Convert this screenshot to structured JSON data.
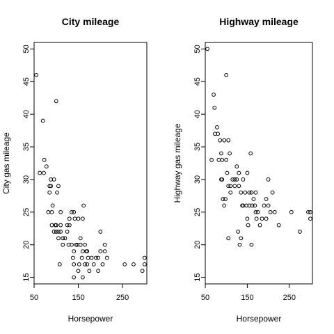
{
  "chart_data": [
    {
      "type": "scatter",
      "title": "City mileage",
      "xlabel": "Horsepower",
      "ylabel": "City gas mileage",
      "xlim": [
        50,
        305
      ],
      "ylim": [
        14,
        51
      ],
      "xticks": [
        50,
        150,
        250
      ],
      "yticks": [
        15,
        20,
        25,
        30,
        35,
        40,
        45,
        50
      ],
      "points": [
        [
          55,
          46
        ],
        [
          63,
          31
        ],
        [
          70,
          39
        ],
        [
          72,
          31
        ],
        [
          73,
          33
        ],
        [
          78,
          32
        ],
        [
          82,
          25
        ],
        [
          85,
          29
        ],
        [
          85,
          28
        ],
        [
          88,
          30
        ],
        [
          88,
          29
        ],
        [
          90,
          25
        ],
        [
          90,
          23
        ],
        [
          92,
          26
        ],
        [
          95,
          22
        ],
        [
          95,
          30
        ],
        [
          98,
          23
        ],
        [
          100,
          22
        ],
        [
          100,
          23
        ],
        [
          100,
          42
        ],
        [
          102,
          28
        ],
        [
          105,
          21
        ],
        [
          105,
          29
        ],
        [
          105,
          22
        ],
        [
          108,
          17
        ],
        [
          110,
          22
        ],
        [
          110,
          25
        ],
        [
          110,
          23
        ],
        [
          115,
          20
        ],
        [
          115,
          21
        ],
        [
          120,
          21
        ],
        [
          125,
          23
        ],
        [
          125,
          22
        ],
        [
          128,
          20
        ],
        [
          130,
          23
        ],
        [
          130,
          24
        ],
        [
          135,
          20
        ],
        [
          135,
          25
        ],
        [
          138,
          18
        ],
        [
          140,
          15
        ],
        [
          140,
          17
        ],
        [
          140,
          19
        ],
        [
          140,
          25
        ],
        [
          142,
          24
        ],
        [
          145,
          20
        ],
        [
          148,
          20
        ],
        [
          150,
          16
        ],
        [
          150,
          24
        ],
        [
          152,
          17
        ],
        [
          155,
          20
        ],
        [
          155,
          21
        ],
        [
          158,
          18
        ],
        [
          160,
          19
        ],
        [
          160,
          24
        ],
        [
          160,
          15
        ],
        [
          162,
          26
        ],
        [
          165,
          20
        ],
        [
          165,
          17
        ],
        [
          168,
          19
        ],
        [
          170,
          19
        ],
        [
          170,
          17
        ],
        [
          172,
          18
        ],
        [
          175,
          16
        ],
        [
          180,
          18
        ],
        [
          185,
          17
        ],
        [
          190,
          18
        ],
        [
          195,
          16
        ],
        [
          195,
          18
        ],
        [
          200,
          19
        ],
        [
          200,
          22
        ],
        [
          205,
          17
        ],
        [
          210,
          20
        ],
        [
          210,
          19
        ],
        [
          215,
          18
        ],
        [
          255,
          17
        ],
        [
          275,
          17
        ],
        [
          295,
          16
        ],
        [
          300,
          18
        ],
        [
          300,
          17
        ]
      ]
    },
    {
      "type": "scatter",
      "title": "Highway mileage",
      "xlabel": "Horsepower",
      "ylabel": "Highway gas mileage",
      "xlim": [
        50,
        305
      ],
      "ylim": [
        14,
        51
      ],
      "xticks": [
        50,
        150,
        250
      ],
      "yticks": [
        15,
        20,
        25,
        30,
        35,
        40,
        45,
        50
      ],
      "points": [
        [
          55,
          50
        ],
        [
          65,
          33
        ],
        [
          70,
          43
        ],
        [
          72,
          41
        ],
        [
          73,
          37
        ],
        [
          78,
          38
        ],
        [
          80,
          37
        ],
        [
          82,
          33
        ],
        [
          85,
          36
        ],
        [
          88,
          30
        ],
        [
          88,
          34
        ],
        [
          90,
          33
        ],
        [
          90,
          30
        ],
        [
          92,
          27
        ],
        [
          95,
          26
        ],
        [
          95,
          36
        ],
        [
          98,
          27
        ],
        [
          100,
          46
        ],
        [
          100,
          33
        ],
        [
          102,
          31
        ],
        [
          105,
          21
        ],
        [
          105,
          29
        ],
        [
          105,
          36
        ],
        [
          108,
          34
        ],
        [
          110,
          29
        ],
        [
          110,
          28
        ],
        [
          115,
          30
        ],
        [
          120,
          29
        ],
        [
          120,
          30
        ],
        [
          125,
          30
        ],
        [
          125,
          32
        ],
        [
          128,
          22
        ],
        [
          130,
          31
        ],
        [
          130,
          29
        ],
        [
          132,
          20
        ],
        [
          135,
          21
        ],
        [
          135,
          28
        ],
        [
          138,
          26
        ],
        [
          140,
          30
        ],
        [
          140,
          26
        ],
        [
          145,
          28
        ],
        [
          148,
          26
        ],
        [
          150,
          31
        ],
        [
          150,
          24
        ],
        [
          152,
          23
        ],
        [
          155,
          28
        ],
        [
          155,
          26
        ],
        [
          158,
          34
        ],
        [
          160,
          20
        ],
        [
          160,
          28
        ],
        [
          162,
          26
        ],
        [
          165,
          27
        ],
        [
          168,
          26
        ],
        [
          170,
          28
        ],
        [
          170,
          25
        ],
        [
          172,
          24
        ],
        [
          175,
          25
        ],
        [
          180,
          23
        ],
        [
          185,
          24
        ],
        [
          190,
          26
        ],
        [
          195,
          27
        ],
        [
          195,
          24
        ],
        [
          200,
          30
        ],
        [
          200,
          26
        ],
        [
          205,
          25
        ],
        [
          210,
          28
        ],
        [
          215,
          25
        ],
        [
          225,
          23
        ],
        [
          255,
          25
        ],
        [
          275,
          22
        ],
        [
          295,
          25
        ],
        [
          300,
          25
        ],
        [
          300,
          24
        ]
      ]
    }
  ]
}
